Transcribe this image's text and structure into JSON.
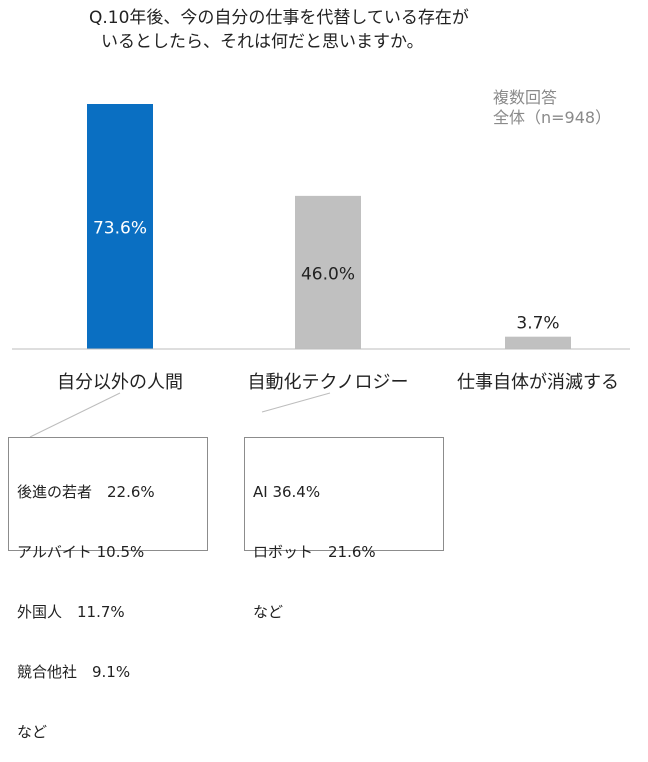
{
  "title_line1": "Q.10年後、今の自分の仕事を代替している存在が",
  "title_line2": "いるとしたら、それは何だと思いますか。",
  "note_line1": "複数回答",
  "note_line2": "全体（n=948）",
  "chart_data": {
    "type": "bar",
    "categories": [
      "自分以外の人間",
      "自動化テクノロジー",
      "仕事自体が消滅する"
    ],
    "values": [
      73.6,
      46.0,
      3.7
    ],
    "value_labels": [
      "73.6%",
      "46.0%",
      "3.7%"
    ],
    "colors": [
      "#0a6fc2",
      "#c0c0c0",
      "#c0c0c0"
    ],
    "label_colors": [
      "#ffffff",
      "#222222",
      "#222222"
    ],
    "ylim": [
      0,
      100
    ],
    "grid": false,
    "legend": "none"
  },
  "breakdown_human": [
    "後進の若者　22.6%",
    "アルバイト 10.5%",
    "外国人　11.7%",
    "競合他社　9.1%",
    "など"
  ],
  "breakdown_tech": [
    "AI 36.4%",
    "ロボット　21.6%",
    "など"
  ]
}
